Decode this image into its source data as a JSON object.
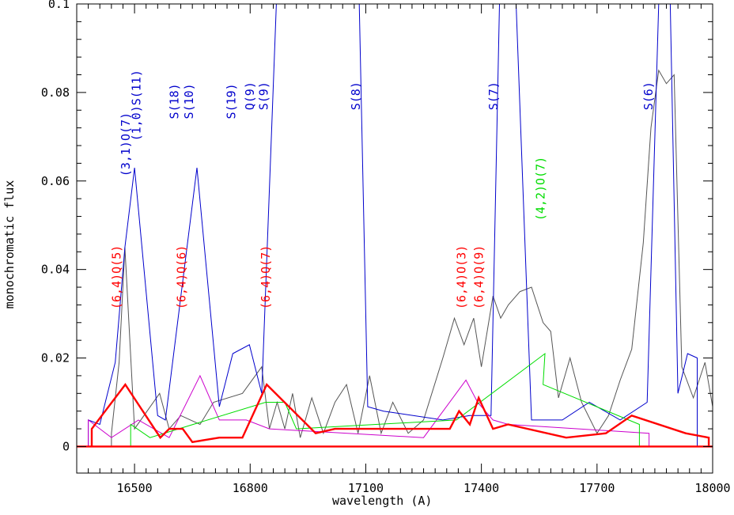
{
  "chart_data": {
    "type": "line",
    "xlabel": "wavelength (A)",
    "ylabel": "monochromatic flux",
    "xlim": [
      16350,
      18000
    ],
    "ylim": [
      -0.006,
      0.1
    ],
    "x_ticks": [
      16500,
      16800,
      17100,
      17400,
      17700,
      18000
    ],
    "y_ticks": [
      0,
      0.02,
      0.04,
      0.06,
      0.08,
      0.1
    ],
    "y_tick_labels": [
      "0",
      "0.02",
      "0.04",
      "0.06",
      "0.08",
      "0.1"
    ],
    "grid": false,
    "colors": {
      "observed": "#555555",
      "model_blue": "#0000cc",
      "model_red": "#ff0000",
      "model_green": "#00dd00",
      "model_magenta": "#cc00cc"
    },
    "series": [
      {
        "color_key": "observed",
        "lines": [
          [
            16440,
            0.003
          ],
          [
            16460,
            0.019
          ],
          [
            16475,
            0.045
          ],
          [
            16500,
            0.004
          ],
          [
            16565,
            0.012
          ],
          [
            16590,
            0.004
          ],
          [
            16620,
            0.007
          ],
          [
            16670,
            0.005
          ],
          [
            16705,
            0.01
          ],
          [
            16780,
            0.012
          ],
          [
            16830,
            0.018
          ],
          [
            16850,
            0.004
          ],
          [
            16870,
            0.01
          ],
          [
            16890,
            0.004
          ],
          [
            16910,
            0.012
          ],
          [
            16930,
            0.002
          ],
          [
            16960,
            0.011
          ],
          [
            16990,
            0.003
          ],
          [
            17020,
            0.01
          ],
          [
            17050,
            0.014
          ],
          [
            17080,
            0.003
          ],
          [
            17110,
            0.016
          ],
          [
            17140,
            0.003
          ],
          [
            17170,
            0.01
          ],
          [
            17210,
            0.003
          ],
          [
            17250,
            0.006
          ],
          [
            17300,
            0.02
          ],
          [
            17330,
            0.029
          ],
          [
            17355,
            0.023
          ],
          [
            17380,
            0.029
          ],
          [
            17400,
            0.018
          ],
          [
            17430,
            0.034
          ],
          [
            17450,
            0.029
          ],
          [
            17470,
            0.032
          ],
          [
            17500,
            0.035
          ],
          [
            17530,
            0.036
          ],
          [
            17560,
            0.028
          ],
          [
            17580,
            0.026
          ],
          [
            17600,
            0.011
          ],
          [
            17630,
            0.02
          ],
          [
            17660,
            0.01
          ],
          [
            17700,
            0.003
          ],
          [
            17730,
            0.007
          ],
          [
            17760,
            0.015
          ],
          [
            17790,
            0.022
          ],
          [
            17820,
            0.046
          ],
          [
            17840,
            0.072
          ],
          [
            17860,
            0.085
          ],
          [
            17880,
            0.082
          ],
          [
            17900,
            0.084
          ],
          [
            17920,
            0.018
          ],
          [
            17950,
            0.011
          ],
          [
            17980,
            0.019
          ],
          [
            18000,
            0.009
          ]
        ]
      },
      {
        "color_key": "model_blue",
        "lines": [
          [
            16380,
            0.006
          ],
          [
            16410,
            0.005
          ],
          [
            16450,
            0.019
          ],
          [
            16475,
            0.045
          ],
          [
            16500,
            0.063
          ],
          [
            16560,
            0.007
          ],
          [
            16580,
            0.006
          ],
          [
            16662,
            0.063
          ],
          [
            16720,
            0.009
          ],
          [
            16755,
            0.021
          ],
          [
            16798,
            0.023
          ],
          [
            16830,
            0.012
          ],
          [
            16868,
            0.1
          ],
          [
            17083,
            0.1
          ],
          [
            17105,
            0.009
          ],
          [
            17146,
            0.008
          ],
          [
            17300,
            0.006
          ],
          [
            17370,
            0.007
          ],
          [
            17425,
            0.007
          ],
          [
            17447,
            0.1
          ],
          [
            17490,
            0.1
          ],
          [
            17530,
            0.006
          ],
          [
            17610,
            0.006
          ],
          [
            17680,
            0.01
          ],
          [
            17760,
            0.006
          ],
          [
            17830,
            0.01
          ],
          [
            17860,
            0.1
          ],
          [
            17890,
            0.1
          ],
          [
            17910,
            0.012
          ],
          [
            17935,
            0.021
          ],
          [
            17960,
            0.02
          ]
        ]
      },
      {
        "color_key": "model_magenta",
        "lines": [
          [
            16380,
            0.006
          ],
          [
            16440,
            0.002
          ],
          [
            16510,
            0.006
          ],
          [
            16590,
            0.002
          ],
          [
            16670,
            0.016
          ],
          [
            16720,
            0.006
          ],
          [
            16790,
            0.006
          ],
          [
            16850,
            0.004
          ],
          [
            17250,
            0.002
          ],
          [
            17360,
            0.015
          ],
          [
            17390,
            0.01
          ],
          [
            17430,
            0.006
          ],
          [
            17470,
            0.005
          ],
          [
            17835,
            0.003
          ]
        ]
      },
      {
        "color_key": "model_green",
        "lines": [
          [
            16490,
            0.005
          ],
          [
            16540,
            0.002
          ],
          [
            16840,
            0.01
          ],
          [
            16890,
            0.01
          ],
          [
            16920,
            0.004
          ],
          [
            17335,
            0.006
          ],
          [
            17565,
            0.021
          ],
          [
            17560,
            0.014
          ],
          [
            17810,
            0.005
          ]
        ]
      },
      {
        "color_key": "model_red",
        "lines": [
          [
            16389,
            0.004
          ],
          [
            16476,
            0.014
          ],
          [
            16567,
            0.002
          ],
          [
            16590,
            0.004
          ],
          [
            16625,
            0.004
          ],
          [
            16650,
            0.001
          ],
          [
            16720,
            0.002
          ],
          [
            16780,
            0.002
          ],
          [
            16843,
            0.014
          ],
          [
            16970,
            0.003
          ],
          [
            17020,
            0.004
          ],
          [
            17230,
            0.004
          ],
          [
            17318,
            0.004
          ],
          [
            17342,
            0.008
          ],
          [
            17370,
            0.005
          ],
          [
            17393,
            0.011
          ],
          [
            17430,
            0.004
          ],
          [
            17469,
            0.005
          ],
          [
            17620,
            0.002
          ],
          [
            17723,
            0.003
          ],
          [
            17790,
            0.007
          ],
          [
            17930,
            0.003
          ],
          [
            17990,
            0.002
          ]
        ]
      }
    ],
    "annotations": [
      {
        "text": "(6,4)Q(5)",
        "x": 16464,
        "y": 0.031,
        "color": "#ff0000"
      },
      {
        "text": "(3,1)O(7)",
        "x": 16488,
        "y": 0.061,
        "color": "#0000cc"
      },
      {
        "text": "(1,0)S(11)",
        "x": 16515,
        "y": 0.069,
        "color": "#0000cc"
      },
      {
        "text": "(6,4)Q(6)",
        "x": 16632,
        "y": 0.031,
        "color": "#ff0000"
      },
      {
        "text": "S(18)",
        "x": 16614,
        "y": 0.074,
        "color": "#0000cc"
      },
      {
        "text": "S(10)",
        "x": 16652,
        "y": 0.074,
        "color": "#0000cc"
      },
      {
        "text": "S(19)",
        "x": 16762,
        "y": 0.074,
        "color": "#0000cc"
      },
      {
        "text": "Q(9)",
        "x": 16810,
        "y": 0.076,
        "color": "#0000cc"
      },
      {
        "text": "S(9)",
        "x": 16846,
        "y": 0.076,
        "color": "#0000cc"
      },
      {
        "text": "(6,4)Q(7)",
        "x": 16851,
        "y": 0.031,
        "color": "#ff0000"
      },
      {
        "text": "S(8)",
        "x": 17085,
        "y": 0.076,
        "color": "#0000cc"
      },
      {
        "text": "(6,4)O(3)",
        "x": 17359,
        "y": 0.031,
        "color": "#ff0000"
      },
      {
        "text": "(6,4)Q(9)",
        "x": 17404,
        "y": 0.031,
        "color": "#ff0000"
      },
      {
        "text": "S(7)",
        "x": 17442,
        "y": 0.076,
        "color": "#0000cc"
      },
      {
        "text": "(4,2)O(7)",
        "x": 17564,
        "y": 0.051,
        "color": "#00dd00"
      },
      {
        "text": "S(6)",
        "x": 17844,
        "y": 0.076,
        "color": "#0000cc"
      }
    ]
  }
}
